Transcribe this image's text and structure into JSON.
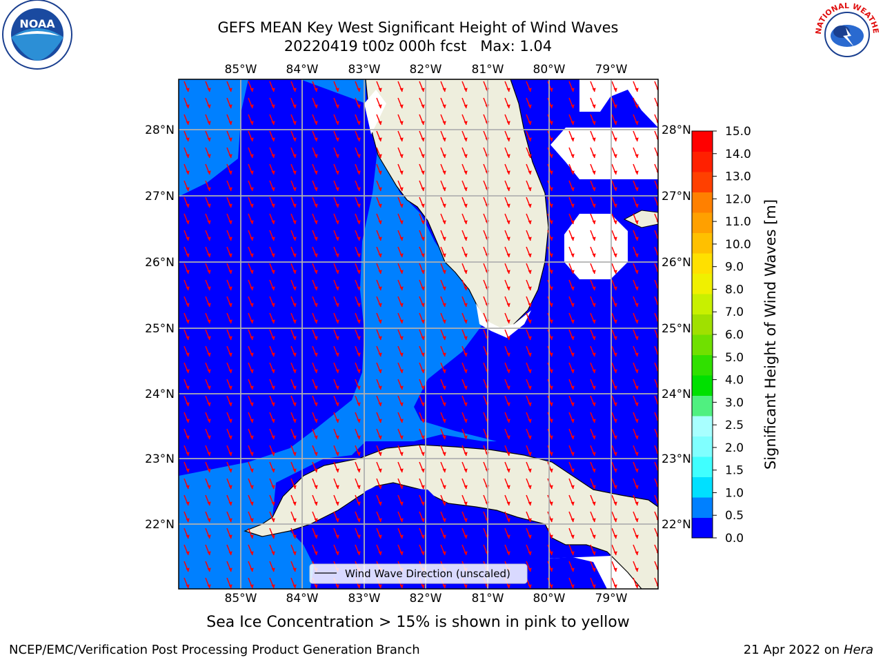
{
  "title": {
    "line1": "GEFS MEAN Key West Significant Height of Wind Waves",
    "line2": "20220419 t00z 000h fcst   Max: 1.04"
  },
  "map": {
    "lon_ticks": [
      "85°W",
      "84°W",
      "83°W",
      "82°W",
      "81°W",
      "80°W",
      "79°W"
    ],
    "lat_ticks": [
      "28°N",
      "27°N",
      "26°N",
      "25°N",
      "24°N",
      "23°N",
      "22°N"
    ],
    "legend_label": "Wind Wave Direction (unscaled)",
    "colors": {
      "land": "#eeeedd",
      "low_band": "#0000ff",
      "mid_band": "#0080ff",
      "arrow": "#ff0000",
      "grid": "#b0b0b0"
    }
  },
  "colorbar": {
    "label": "Significant Height of Wind Waves [m]",
    "tick_labels": [
      "0.0",
      "0.5",
      "1.0",
      "1.5",
      "2.0",
      "2.5",
      "3.0",
      "4.0",
      "5.0",
      "6.0",
      "7.0",
      "8.0",
      "9.0",
      "10.0",
      "11.0",
      "12.0",
      "13.0",
      "14.0",
      "15.0"
    ],
    "colors": [
      "#0000ff",
      "#0080ff",
      "#00e0ff",
      "#40ffff",
      "#80ffff",
      "#a8ffff",
      "#50f080",
      "#00e000",
      "#30e000",
      "#70e000",
      "#a0e000",
      "#c8f000",
      "#f0f000",
      "#ffe000",
      "#ffc000",
      "#ffa000",
      "#ff8000",
      "#ff4000",
      "#ff2000",
      "#ff0000"
    ]
  },
  "logos": {
    "left": {
      "name": "noaa-logo",
      "text": "NOAA"
    },
    "right": {
      "name": "nws-logo",
      "text": "NATIONAL WEATHER SERVICE"
    }
  },
  "note": "Sea Ice Concentration > 15% is shown in pink to yellow",
  "footer": {
    "left": "NCEP/EMC/Verification Post Processing Product Generation Branch",
    "right_date": "21 Apr 2022 on ",
    "right_machine": "Hera"
  }
}
